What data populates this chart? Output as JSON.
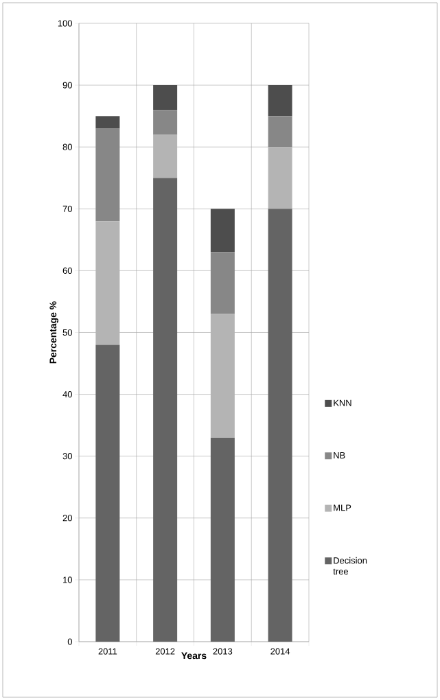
{
  "chart_data": {
    "type": "bar",
    "stacked": true,
    "xlabel": "Years",
    "ylabel": "Percentage %",
    "categories": [
      "2011",
      "2012",
      "2013",
      "2014"
    ],
    "series": [
      {
        "name": "Decision tree",
        "color": "#646464",
        "values": [
          48,
          75,
          33,
          70
        ]
      },
      {
        "name": "MLP",
        "color": "#b4b4b4",
        "values": [
          20,
          7,
          20,
          10
        ]
      },
      {
        "name": "NB",
        "color": "#878787",
        "values": [
          15,
          4,
          10,
          5
        ]
      },
      {
        "name": "KNN",
        "color": "#4d4d4d",
        "values": [
          2,
          4,
          7,
          5
        ]
      }
    ],
    "ylim": [
      0,
      100
    ],
    "yticks": [
      0,
      10,
      20,
      30,
      40,
      50,
      60,
      70,
      80,
      90,
      100
    ],
    "grid": true,
    "legend": "right"
  }
}
